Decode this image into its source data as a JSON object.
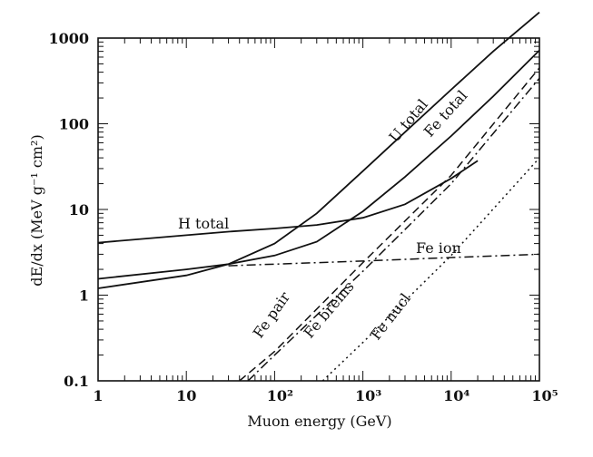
{
  "chart_data": {
    "type": "line",
    "xlabel": "Muon energy (GeV)",
    "ylabel": "dE/dx  (MeV g⁻¹ cm²)",
    "xscale": "log",
    "yscale": "log",
    "xlim": [
      1,
      100000
    ],
    "ylim": [
      0.1,
      1000
    ],
    "grid": false,
    "legend": "none (curves labeled directly)",
    "x_tick_labels": [
      "1",
      "10",
      "10²",
      "10³",
      "10⁴",
      "10⁵"
    ],
    "y_tick_labels": [
      "0.1",
      "1",
      "10",
      "100",
      "1000"
    ],
    "series": [
      {
        "name": "H total",
        "style": "solid",
        "x": [
          1,
          10,
          30,
          100,
          300,
          1000,
          3000,
          10000,
          20000
        ],
        "y": [
          4.1,
          5.0,
          5.5,
          6.0,
          6.6,
          8.0,
          11.5,
          23,
          37
        ]
      },
      {
        "name": "U total",
        "style": "solid",
        "x": [
          1,
          10,
          30,
          100,
          300,
          1000,
          3000,
          10000,
          30000,
          100000
        ],
        "y": [
          1.2,
          1.7,
          2.3,
          4.0,
          9.0,
          28,
          80,
          250,
          700,
          2000
        ]
      },
      {
        "name": "Fe total",
        "style": "solid",
        "x": [
          1,
          10,
          30,
          100,
          300,
          1000,
          3000,
          10000,
          30000,
          100000
        ],
        "y": [
          1.55,
          2.0,
          2.3,
          2.9,
          4.2,
          9.5,
          24,
          72,
          210,
          720
        ]
      },
      {
        "name": "Fe ion",
        "style": "dash-dot",
        "x": [
          30,
          100,
          1000,
          10000,
          100000
        ],
        "y": [
          2.2,
          2.3,
          2.5,
          2.75,
          3.0
        ]
      },
      {
        "name": "Fe pair",
        "style": "dashed",
        "x": [
          40,
          100,
          1000,
          10000,
          100000
        ],
        "y": [
          0.1,
          0.22,
          2.4,
          25,
          450
        ]
      },
      {
        "name": "Fe brems",
        "style": "dash-dot",
        "x": [
          50,
          100,
          1000,
          10000,
          100000
        ],
        "y": [
          0.1,
          0.2,
          1.9,
          20,
          340
        ]
      },
      {
        "name": "Fe nucl",
        "style": "dotted",
        "x": [
          350,
          1000,
          10000,
          100000
        ],
        "y": [
          0.1,
          0.28,
          2.9,
          40
        ]
      }
    ]
  }
}
